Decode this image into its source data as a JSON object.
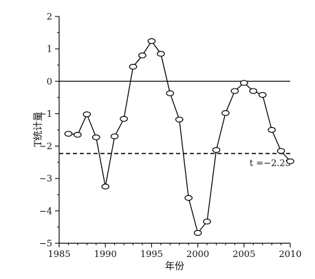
{
  "chart_data": {
    "type": "line",
    "xlabel": "年份",
    "ylabel": "T统计量",
    "xlim": [
      1985,
      2010
    ],
    "ylim": [
      -5,
      2
    ],
    "xticks": [
      1985,
      1990,
      1995,
      2000,
      2005,
      2010
    ],
    "yticks": [
      -5,
      -4,
      -3,
      -2,
      -1,
      0,
      1,
      2
    ],
    "grid": false,
    "series": [
      {
        "x": [
          1986,
          1987,
          1988,
          1989,
          1990,
          1991,
          1992,
          1993,
          1994,
          1995,
          1996,
          1997,
          1998,
          1999,
          2000,
          2001,
          2002,
          2003,
          2004,
          2005,
          2006,
          2007,
          2008,
          2009,
          2010
        ],
        "y": [
          -1.62,
          -1.65,
          -1.02,
          -1.73,
          -3.25,
          -1.7,
          -1.16,
          0.45,
          0.8,
          1.24,
          0.85,
          -0.37,
          -1.18,
          -3.6,
          -4.68,
          -4.33,
          -2.12,
          -0.98,
          -0.3,
          -0.05,
          -0.3,
          -0.42,
          -1.5,
          -2.15,
          -2.47
        ],
        "color": "#000000"
      }
    ],
    "reference_lines": [
      {
        "y": 0,
        "style": "solid",
        "color": "#000000"
      },
      {
        "y": -2.23,
        "style": "dashed",
        "color": "#000000"
      }
    ],
    "annotations": [
      {
        "text": "t =−2.23",
        "x": 2005.6,
        "y": -2.23
      }
    ]
  }
}
